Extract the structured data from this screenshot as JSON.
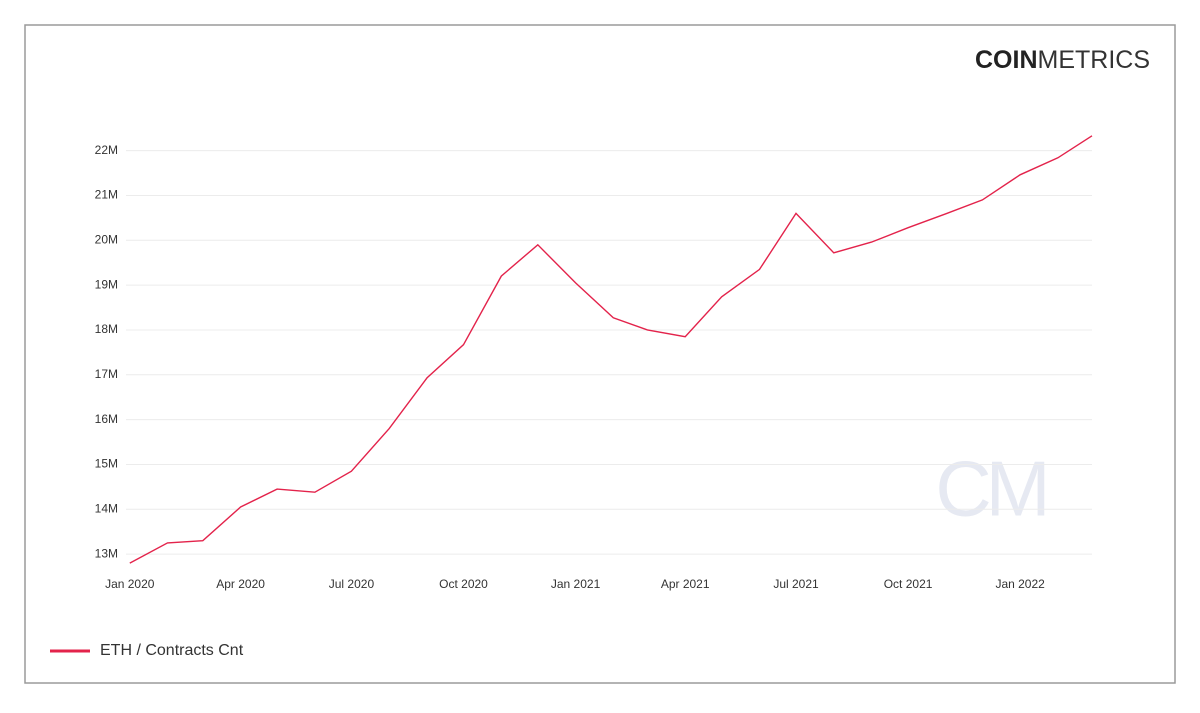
{
  "logo": {
    "bold": "COIN",
    "light": "METRICS"
  },
  "watermark": "CM",
  "chart_data": {
    "type": "line",
    "x": [
      "2020-01",
      "2020-02",
      "2020-03",
      "2020-04",
      "2020-05",
      "2020-06",
      "2020-07",
      "2020-08",
      "2020-09",
      "2020-10",
      "2020-11",
      "2020-12",
      "2021-01",
      "2021-02",
      "2021-03",
      "2021-04",
      "2021-05",
      "2021-06",
      "2021-07",
      "2021-08",
      "2021-09",
      "2021-10",
      "2021-11",
      "2021-12",
      "2022-01",
      "2022-02",
      "2022-03"
    ],
    "series": [
      {
        "name": "ETH / Contracts Cnt",
        "color": "#e3234b",
        "values": [
          12.8,
          13.25,
          13.3,
          14.05,
          14.45,
          14.38,
          14.85,
          15.8,
          16.93,
          17.67,
          19.2,
          19.9,
          19.05,
          18.27,
          18.0,
          17.85,
          18.74,
          19.35,
          20.6,
          19.72,
          19.96,
          20.28,
          20.59,
          20.9,
          21.46,
          21.84,
          22.33
        ]
      }
    ],
    "xlim": [
      "2019-12",
      "2022-03"
    ],
    "xticks": [
      {
        "value": "2020-01",
        "label": "Jan 2020"
      },
      {
        "value": "2020-04",
        "label": "Apr 2020"
      },
      {
        "value": "2020-07",
        "label": "Jul 2020"
      },
      {
        "value": "2020-10",
        "label": "Oct 2020"
      },
      {
        "value": "2021-01",
        "label": "Jan 2021"
      },
      {
        "value": "2021-04",
        "label": "Apr 2021"
      },
      {
        "value": "2021-07",
        "label": "Jul 2021"
      },
      {
        "value": "2021-10",
        "label": "Oct 2021"
      },
      {
        "value": "2022-01",
        "label": "Jan 2022"
      }
    ],
    "ylim": [
      12.69,
      22.46
    ],
    "yticks": [
      {
        "value": 13,
        "label": "13M"
      },
      {
        "value": 14,
        "label": "14M"
      },
      {
        "value": 15,
        "label": "15M"
      },
      {
        "value": 16,
        "label": "16M"
      },
      {
        "value": 17,
        "label": "17M"
      },
      {
        "value": 18,
        "label": "18M"
      },
      {
        "value": 19,
        "label": "19M"
      },
      {
        "value": 20,
        "label": "20M"
      },
      {
        "value": 21,
        "label": "21M"
      },
      {
        "value": 22,
        "label": "22M"
      }
    ],
    "grid": true
  }
}
